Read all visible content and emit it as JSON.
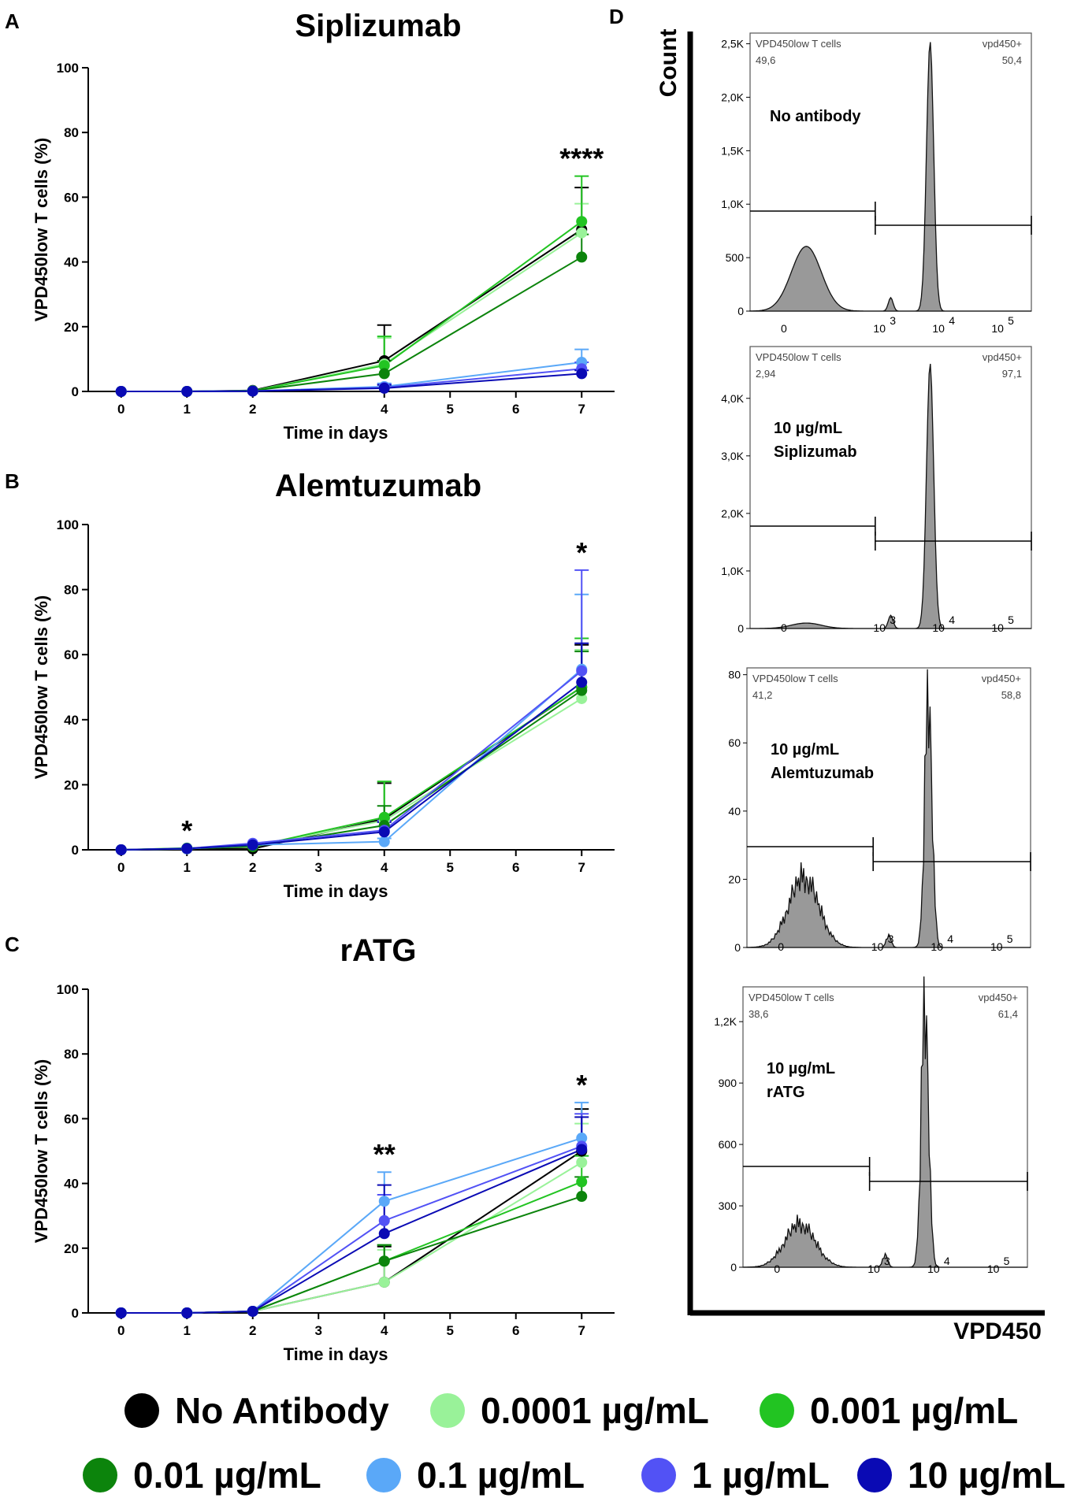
{
  "chart_data": [
    {
      "type": "line",
      "panel": "A",
      "title": "Siplizumab",
      "xlabel": "Time in days",
      "ylabel": "VPD450low T cells (%)",
      "xlim": [
        -0.5,
        7.5
      ],
      "ylim": [
        0,
        100
      ],
      "x_ticks": [
        0,
        1,
        2,
        4,
        5,
        6,
        7
      ],
      "y_ticks": [
        0,
        20,
        40,
        60,
        80,
        100
      ],
      "x": [
        0,
        1,
        2,
        4,
        7
      ],
      "significance": [
        {
          "x": 7,
          "label": "****"
        }
      ],
      "series": [
        {
          "name": "No Antibody",
          "color": "#000000",
          "values": [
            0,
            0,
            0.3,
            9.5,
            50
          ],
          "errors": [
            0,
            0,
            0,
            11,
            13
          ]
        },
        {
          "name": "0.0001 µg/mL",
          "color": "#99f299",
          "values": [
            0,
            0,
            0.2,
            8.5,
            49
          ],
          "errors": [
            0,
            0,
            0,
            8,
            9
          ]
        },
        {
          "name": "0.001 µg/mL",
          "color": "#22c422",
          "values": [
            0,
            0,
            0.2,
            8,
            52.5
          ],
          "errors": [
            0,
            0,
            0,
            9,
            14
          ]
        },
        {
          "name": "0.01 µg/mL",
          "color": "#0c840c",
          "values": [
            0,
            0,
            0.2,
            5.5,
            41.5
          ],
          "errors": [
            0,
            0,
            0,
            4,
            7
          ]
        },
        {
          "name": "0.1 µg/mL",
          "color": "#5aa8f8",
          "values": [
            0,
            0,
            0.1,
            1.5,
            9
          ],
          "errors": [
            0,
            0,
            0,
            1,
            4
          ]
        },
        {
          "name": "1 µg/mL",
          "color": "#5252f5",
          "values": [
            0,
            0,
            0.1,
            1.2,
            7
          ],
          "errors": [
            0,
            0,
            0,
            1,
            2
          ]
        },
        {
          "name": "10 µg/mL",
          "color": "#0a0ab4",
          "values": [
            0,
            0,
            0.1,
            1,
            5.5
          ],
          "errors": [
            0,
            0,
            0,
            1,
            1
          ]
        }
      ]
    },
    {
      "type": "line",
      "panel": "B",
      "title": "Alemtuzumab",
      "xlabel": "Time in days",
      "ylabel": "VPD450low T cells (%)",
      "xlim": [
        -0.5,
        7.5
      ],
      "ylim": [
        0,
        100
      ],
      "x_ticks": [
        0,
        1,
        2,
        3,
        4,
        5,
        6,
        7
      ],
      "y_ticks": [
        0,
        20,
        40,
        60,
        80,
        100
      ],
      "x": [
        0,
        1,
        2,
        4,
        7
      ],
      "significance": [
        {
          "x": 1,
          "label": "*"
        },
        {
          "x": 7,
          "label": "*"
        }
      ],
      "series": [
        {
          "name": "No Antibody",
          "color": "#000000",
          "values": [
            0,
            0.3,
            0.3,
            9.5,
            50
          ],
          "errors": [
            0,
            0,
            0,
            11,
            13
          ]
        },
        {
          "name": "0.0001 µg/mL",
          "color": "#99f299",
          "values": [
            0,
            0.5,
            1,
            9,
            46.5
          ],
          "errors": [
            0,
            0,
            0,
            12,
            15
          ]
        },
        {
          "name": "0.001 µg/mL",
          "color": "#22c422",
          "values": [
            0,
            0.5,
            1,
            10,
            50
          ],
          "errors": [
            0,
            0,
            0,
            11,
            15
          ]
        },
        {
          "name": "0.01 µg/mL",
          "color": "#0c840c",
          "values": [
            0,
            0.4,
            1,
            7.5,
            49
          ],
          "errors": [
            0,
            0,
            0,
            6,
            12
          ]
        },
        {
          "name": "0.1 µg/mL",
          "color": "#5aa8f8",
          "values": [
            0,
            0.3,
            1.5,
            2.5,
            55.5
          ],
          "errors": [
            0,
            0,
            0,
            1,
            23
          ]
        },
        {
          "name": "1 µg/mL",
          "color": "#5252f5",
          "values": [
            0,
            0.4,
            2,
            6,
            55
          ],
          "errors": [
            0,
            0,
            0,
            3,
            31
          ]
        },
        {
          "name": "10 µg/mL",
          "color": "#0a0ab4",
          "values": [
            0,
            0.4,
            1.5,
            5.5,
            51.5
          ],
          "errors": [
            0,
            0,
            0,
            3,
            12
          ]
        }
      ]
    },
    {
      "type": "line",
      "panel": "C",
      "title": "rATG",
      "xlabel": "Time in days",
      "ylabel": "VPD450low T cells (%)",
      "xlim": [
        -0.5,
        7.5
      ],
      "ylim": [
        0,
        100
      ],
      "x_ticks": [
        0,
        1,
        2,
        3,
        4,
        5,
        6,
        7
      ],
      "y_ticks": [
        0,
        20,
        40,
        60,
        80,
        100
      ],
      "x": [
        0,
        1,
        2,
        4,
        7
      ],
      "significance": [
        {
          "x": 4,
          "label": "**"
        },
        {
          "x": 7,
          "label": "*"
        }
      ],
      "series": [
        {
          "name": "No Antibody",
          "color": "#000000",
          "values": [
            0,
            0,
            0.5,
            9.5,
            50
          ],
          "errors": [
            0,
            0,
            0,
            11,
            13
          ]
        },
        {
          "name": "0.0001 µg/mL",
          "color": "#99f299",
          "values": [
            0,
            0,
            0.5,
            9.5,
            46.5
          ],
          "errors": [
            0,
            0,
            0,
            10,
            12
          ]
        },
        {
          "name": "0.001 µg/mL",
          "color": "#22c422",
          "values": [
            0,
            0,
            0.5,
            16,
            40.5
          ],
          "errors": [
            0,
            0,
            0,
            5,
            8
          ]
        },
        {
          "name": "0.01 µg/mL",
          "color": "#0c840c",
          "values": [
            0,
            0,
            0.5,
            16,
            36
          ],
          "errors": [
            0,
            0,
            0,
            5,
            6
          ]
        },
        {
          "name": "0.1 µg/mL",
          "color": "#5aa8f8",
          "values": [
            0,
            0,
            0.5,
            34.5,
            54
          ],
          "errors": [
            0,
            0,
            0,
            9,
            11
          ]
        },
        {
          "name": "1 µg/mL",
          "color": "#5252f5",
          "values": [
            0,
            0,
            0.5,
            28.5,
            51.5
          ],
          "errors": [
            0,
            0,
            0,
            8,
            10
          ]
        },
        {
          "name": "10 µg/mL",
          "color": "#0a0ab4",
          "values": [
            0,
            0,
            0.5,
            24.5,
            50.5
          ],
          "errors": [
            0,
            0,
            0,
            15,
            10
          ]
        }
      ]
    }
  ],
  "flow": {
    "panel": "D",
    "ylabel": "Count",
    "xlabel": "VPD450",
    "x_ticks": [
      "0",
      "10",
      "10",
      "10"
    ],
    "x_tick_exps": [
      "3",
      "4",
      "5"
    ],
    "gate_left_label": "VPD450low T cells",
    "gate_right_label": "vpd450+",
    "histograms": [
      {
        "label_line1": "No antibody",
        "label_line2": "",
        "low_pct": "49,6",
        "high_pct": "50,4",
        "y_ticks": [
          "0",
          "500",
          "1,0K",
          "1,5K",
          "2,0K",
          "2,5K"
        ],
        "y_tick_values": [
          0,
          500,
          1000,
          1500,
          2000,
          2500
        ],
        "y_max": 2600,
        "low_peak": 0.24,
        "high_peak": 1.0
      },
      {
        "label_line1": "10 µg/mL",
        "label_line2": "Siplizumab",
        "low_pct": "2,94",
        "high_pct": "97,1",
        "y_ticks": [
          "0",
          "1,0K",
          "2,0K",
          "3,0K",
          "4,0K"
        ],
        "y_tick_values": [
          0,
          1000,
          2000,
          3000,
          4000
        ],
        "y_max": 4900,
        "low_peak": 0.02,
        "high_peak": 0.97
      },
      {
        "label_line1": "10 µg/mL",
        "label_line2": "Alemtuzumab",
        "low_pct": "41,2",
        "high_pct": "58,8",
        "y_ticks": [
          "0",
          "20",
          "40",
          "60",
          "80"
        ],
        "y_tick_values": [
          0,
          20,
          40,
          60,
          80
        ],
        "y_max": 82,
        "low_peak": 0.26,
        "high_peak": 0.95
      },
      {
        "label_line1": "10 µg/mL",
        "label_line2": "rATG",
        "low_pct": "38,6",
        "high_pct": "61,4",
        "y_ticks": [
          "0",
          "300",
          "600",
          "900",
          "1,2K"
        ],
        "y_tick_values": [
          0,
          300,
          600,
          900,
          1200
        ],
        "y_max": 1370,
        "low_peak": 0.16,
        "high_peak": 0.99
      }
    ]
  },
  "legend": [
    {
      "label": "No Antibody",
      "color": "#000000"
    },
    {
      "label": "0.0001 µg/mL",
      "color": "#99f299"
    },
    {
      "label": "0.001 µg/mL",
      "color": "#22c422"
    },
    {
      "label": "0.01 µg/mL",
      "color": "#0c840c"
    },
    {
      "label": "0.1 µg/mL",
      "color": "#5aa8f8"
    },
    {
      "label": "1 µg/mL",
      "color": "#5252f5"
    },
    {
      "label": "10 µg/mL",
      "color": "#0a0ab4"
    }
  ]
}
